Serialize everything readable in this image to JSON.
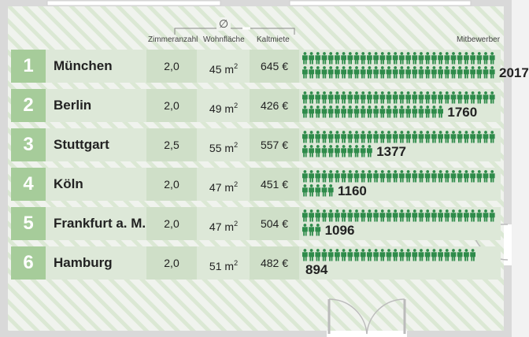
{
  "chart_data": {
    "type": "table",
    "symbol": "∅",
    "columns": {
      "rooms": "Zimmeranzahl",
      "area": "Wohnfläche",
      "rent": "Kaltmiete",
      "competitors": "Mitbewerber"
    },
    "rows": [
      {
        "rank": "1",
        "city": "München",
        "rooms": "2,0",
        "area": "45",
        "rent": "645 €",
        "competitors": 2017,
        "competitors_label": "2017"
      },
      {
        "rank": "2",
        "city": "Berlin",
        "rooms": "2,0",
        "area": "49",
        "rent": "426 €",
        "competitors": 1760,
        "competitors_label": "1760"
      },
      {
        "rank": "3",
        "city": "Stuttgart",
        "rooms": "2,5",
        "area": "55",
        "rent": "557 €",
        "competitors": 1377,
        "competitors_label": "1377"
      },
      {
        "rank": "4",
        "city": "Köln",
        "rooms": "2,0",
        "area": "47",
        "rent": "451 €",
        "competitors": 1160,
        "competitors_label": "1160"
      },
      {
        "rank": "5",
        "city": "Frankfurt a. M.",
        "rooms": "2,0",
        "area": "47",
        "rent": "504 €",
        "competitors": 1096,
        "competitors_label": "1096"
      },
      {
        "rank": "6",
        "city": "Hamburg",
        "rooms": "2,0",
        "area": "51",
        "rent": "482 €",
        "competitors": 894,
        "competitors_label": "894"
      }
    ],
    "area_unit": "m",
    "area_unit_exp": "2",
    "max_value": 2017
  },
  "colors": {
    "rank_box": "#a6cc9a",
    "row_bg": "#dde8d8",
    "cell_bg": "#cfdfc8",
    "icon": "#2e8b4a",
    "floor_stripe": "#d6e6cf"
  }
}
